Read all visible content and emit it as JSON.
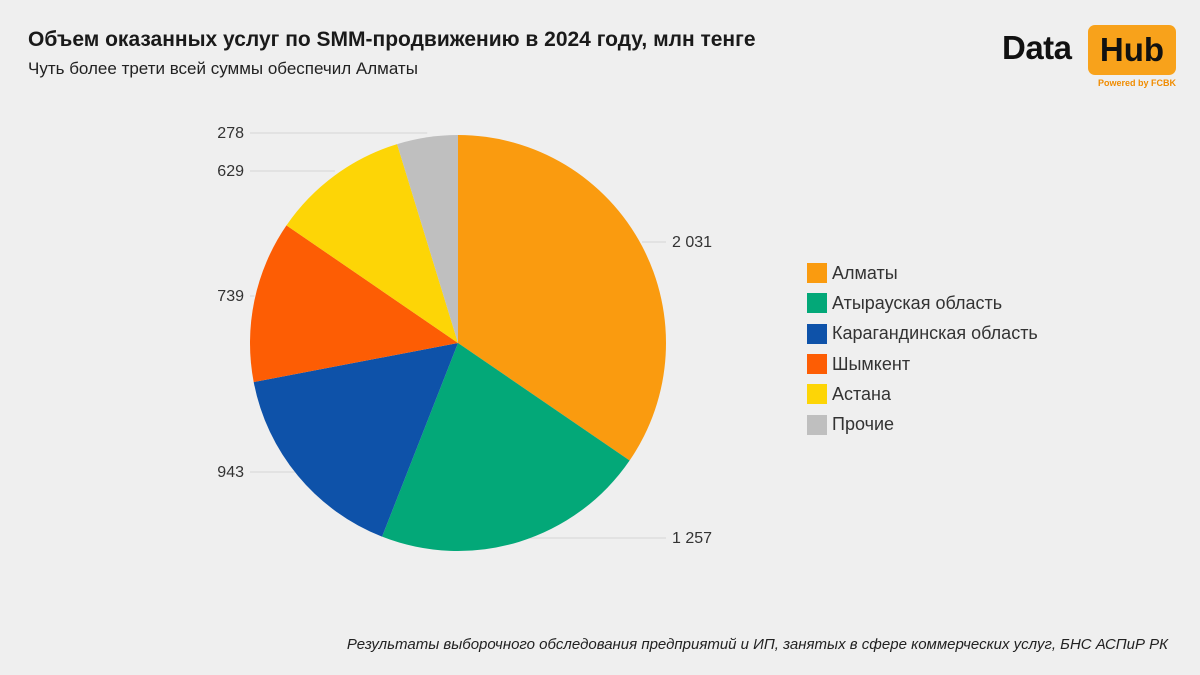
{
  "header": {
    "title": "Объем оказанных услуг по SMM-продвижению в 2024 году, млн тенге",
    "subtitle": "Чуть более трети всей суммы обеспечил Алматы"
  },
  "logo": {
    "word1": "Data",
    "word2": "Hub",
    "tagline": "Powered by FCBK",
    "accent": "#f8a21b"
  },
  "footer": {
    "source": "Результаты выборочного обследования предприятий и ИП, занятых в сфере коммерческих услуг, БНС АСПиР РК"
  },
  "chart_data": {
    "type": "pie",
    "title": "Объем оказанных услуг по SMM-продвижению в 2024 году, млн тенге",
    "subtitle": "Чуть более трети всей суммы обеспечил Алматы",
    "legend_position": "right",
    "slices": [
      {
        "label": "Алматы",
        "value": 2031,
        "display": "2 031",
        "color": "#fa9b0f"
      },
      {
        "label": "Атырауская область",
        "value": 1257,
        "display": "1 257",
        "color": "#03a878"
      },
      {
        "label": "Карагандинская область",
        "value": 943,
        "display": "943",
        "color": "#0e52a9"
      },
      {
        "label": "Шымкент",
        "value": 739,
        "display": "739",
        "color": "#fd5d04"
      },
      {
        "label": "Астана",
        "value": 629,
        "display": "629",
        "color": "#fdd506"
      },
      {
        "label": "Прочие",
        "value": 278,
        "display": "278",
        "color": "#bfbfbf"
      }
    ]
  }
}
